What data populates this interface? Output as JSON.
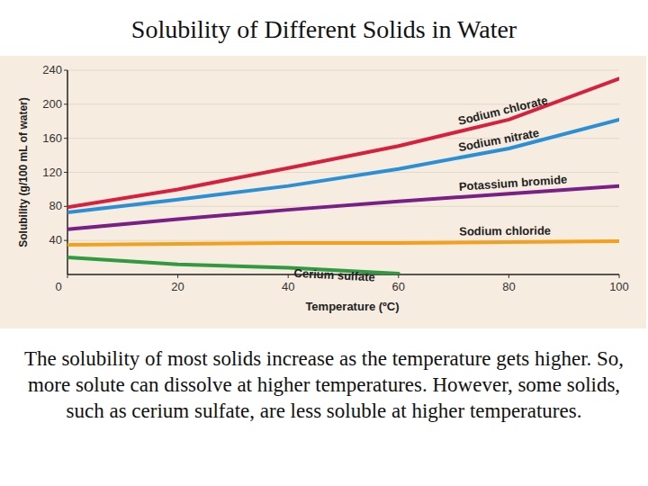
{
  "chart_data": {
    "type": "line",
    "title": "Solubility of Different Solids in Water",
    "caption": "The solubility of most solids increase as the temperature gets higher. So, more solute can dissolve at higher temperatures. However, some solids, such as cerium sulfate, are less soluble at higher temperatures.",
    "x_label": "Temperature (ºC)",
    "y_label": "Solubility (g/100 mL of water)",
    "x": [
      0,
      20,
      40,
      60,
      80,
      100
    ],
    "series": [
      {
        "name": "Sodium chlorate",
        "color": "#d6203e",
        "values": [
          79,
          100,
          125,
          151,
          182,
          230
        ]
      },
      {
        "name": "Sodium nitrate",
        "color": "#2a8fd4",
        "values": [
          73,
          88,
          104,
          124,
          148,
          182
        ]
      },
      {
        "name": "Potassium bromide",
        "color": "#7a1f85",
        "values": [
          53,
          65,
          76,
          86,
          95,
          104
        ]
      },
      {
        "name": "Sodium chloride",
        "color": "#f2a11e",
        "values": [
          35,
          36,
          37,
          37,
          38,
          39
        ]
      },
      {
        "name": "Cerium sulfate",
        "color": "#2f9a3f",
        "values": [
          20,
          12,
          8,
          1,
          null,
          null
        ]
      }
    ],
    "xlim": [
      0,
      100
    ],
    "xticks": [
      0,
      20,
      40,
      60,
      80,
      100
    ],
    "ylim": [
      0,
      240
    ],
    "yticks": [
      40,
      80,
      120,
      160,
      200,
      240
    ],
    "grid": true
  }
}
